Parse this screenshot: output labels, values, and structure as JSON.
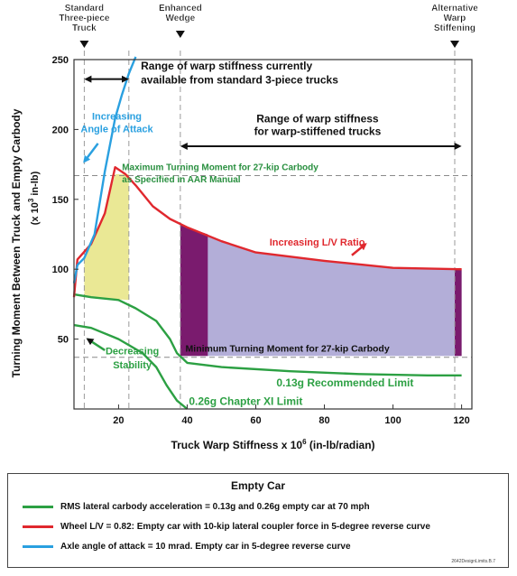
{
  "chart_data": {
    "type": "line",
    "title": "",
    "xlabel_prefix": "Truck Warp Stiffness  x 10",
    "xlabel_exp": "6",
    "xlabel_suffix": " (in-lb/radian)",
    "ylabel_line1": "Turning Moment Between Truck and Empty Carbody",
    "ylabel_line2_prefix": "(x 10",
    "ylabel_line2_exp": "3",
    "ylabel_line2_suffix": " in-lb)",
    "xlim": [
      7,
      123
    ],
    "ylim": [
      0,
      250
    ],
    "x_ticks": [
      20,
      40,
      60,
      80,
      100,
      120
    ],
    "y_ticks": [
      50,
      100,
      150,
      200,
      250
    ],
    "grid": false,
    "series": [
      {
        "key": "rms013",
        "color": "#2ca043",
        "points": [
          [
            7,
            82
          ],
          [
            12,
            80
          ],
          [
            20,
            78
          ],
          [
            25,
            72
          ],
          [
            31,
            63
          ],
          [
            35,
            50
          ],
          [
            37,
            40
          ],
          [
            40,
            33
          ],
          [
            50,
            30
          ],
          [
            70,
            27
          ],
          [
            90,
            25
          ],
          [
            110,
            24
          ],
          [
            120,
            24
          ]
        ]
      },
      {
        "key": "rms026",
        "color": "#2ca043",
        "points": [
          [
            7,
            60
          ],
          [
            12,
            58
          ],
          [
            20,
            50
          ],
          [
            27,
            40
          ],
          [
            31,
            30
          ],
          [
            34,
            17
          ],
          [
            37,
            6
          ],
          [
            40,
            0
          ]
        ]
      },
      {
        "key": "lv",
        "color": "#e0282e",
        "points": [
          [
            7,
            80
          ],
          [
            8,
            107
          ],
          [
            12,
            118
          ],
          [
            16,
            140
          ],
          [
            19,
            173
          ],
          [
            22,
            168
          ],
          [
            25,
            160
          ],
          [
            30,
            145
          ],
          [
            35,
            136
          ],
          [
            40,
            130
          ],
          [
            50,
            120
          ],
          [
            60,
            112
          ],
          [
            80,
            106
          ],
          [
            100,
            101
          ],
          [
            120,
            100
          ]
        ]
      },
      {
        "key": "aoa",
        "color": "#2aa0e0",
        "points": [
          [
            7,
            90
          ],
          [
            8,
            103
          ],
          [
            10,
            108
          ],
          [
            13,
            125
          ],
          [
            16,
            170
          ],
          [
            19,
            208
          ],
          [
            21,
            225
          ],
          [
            23,
            240
          ],
          [
            25,
            252
          ]
        ]
      }
    ],
    "regions": [
      {
        "key": "yellow",
        "color": "#e6e482",
        "opacity": 0.85,
        "top": [
          [
            10,
            108
          ],
          [
            13,
            125
          ],
          [
            16,
            140
          ],
          [
            19,
            168
          ],
          [
            23,
            168
          ]
        ],
        "bottom": [
          [
            10,
            80
          ],
          [
            23,
            78
          ]
        ]
      },
      {
        "key": "lavender",
        "color": "#b3aed8",
        "opacity": 1,
        "top": [
          [
            38,
            132
          ],
          [
            40,
            130
          ],
          [
            50,
            120
          ],
          [
            60,
            112
          ],
          [
            80,
            106
          ],
          [
            100,
            101
          ],
          [
            120,
            100
          ]
        ],
        "bottom": [
          [
            38,
            38
          ],
          [
            120,
            38
          ]
        ]
      },
      {
        "key": "purple1",
        "color": "#7a1b6e",
        "opacity": 1,
        "top": [
          [
            38,
            132
          ],
          [
            40,
            130
          ],
          [
            46,
            125
          ]
        ],
        "bottom": [
          [
            38,
            38
          ],
          [
            46,
            38
          ]
        ]
      },
      {
        "key": "purple2",
        "color": "#7a1b6e",
        "opacity": 1,
        "top": [
          [
            118,
            100
          ],
          [
            120,
            100
          ]
        ],
        "bottom": [
          [
            118,
            38
          ],
          [
            120,
            38
          ]
        ]
      }
    ],
    "reference_lines": [
      {
        "axis": "y",
        "value": 167,
        "label": "Maximum Turning Moment for 27-kip Carbody",
        "label2": "as Specified in AAR Manual",
        "color": "#2a9040"
      },
      {
        "axis": "y",
        "value": 37,
        "label": "Minimum Turning Moment for 27-kip Carbody",
        "color": "#222222"
      },
      {
        "axis": "x",
        "value": 10
      },
      {
        "axis": "x",
        "value": 23
      },
      {
        "axis": "x",
        "value": 38
      },
      {
        "axis": "x",
        "value": 118
      }
    ],
    "markers": [
      {
        "x": 10,
        "lines": [
          "Standard",
          "Three-piece",
          "Truck"
        ]
      },
      {
        "x": 38,
        "lines": [
          "Enhanced",
          "Wedge"
        ]
      },
      {
        "x": 118,
        "lines": [
          "Alternative",
          "Warp",
          "Stiffening"
        ]
      }
    ],
    "annotations": {
      "range_std": [
        "Range of warp stiffness currently",
        "available from standard 3-piece trucks"
      ],
      "range_stiff": [
        "Range of warp stiffness",
        "for warp-stiffened trucks"
      ],
      "aoa": [
        "Increasing",
        "Angle of Attack"
      ],
      "lv": "Increasing L/V Ratio",
      "stability": [
        "Decreasing",
        "Stability"
      ],
      "rec_limit": "0.13g Recommended Limit",
      "ch11": "0.26g Chapter XI Limit"
    }
  },
  "legend": {
    "title": "Empty Car",
    "items": [
      {
        "label": "RMS lateral carbody acceleration = 0.13g and 0.26g empty car at 70 mph",
        "color": "#2ca043"
      },
      {
        "label": "Wheel L/V = 0.82: Empty car with 10-kip lateral coupler force in 5-degree reverse curve",
        "color": "#e0282e"
      },
      {
        "label": "Axle angle of attack = 10 mrad. Empty car in 5-degree reverse curve",
        "color": "#2aa0e0"
      }
    ]
  },
  "figure_id": "2642DesignLimits.B.7"
}
